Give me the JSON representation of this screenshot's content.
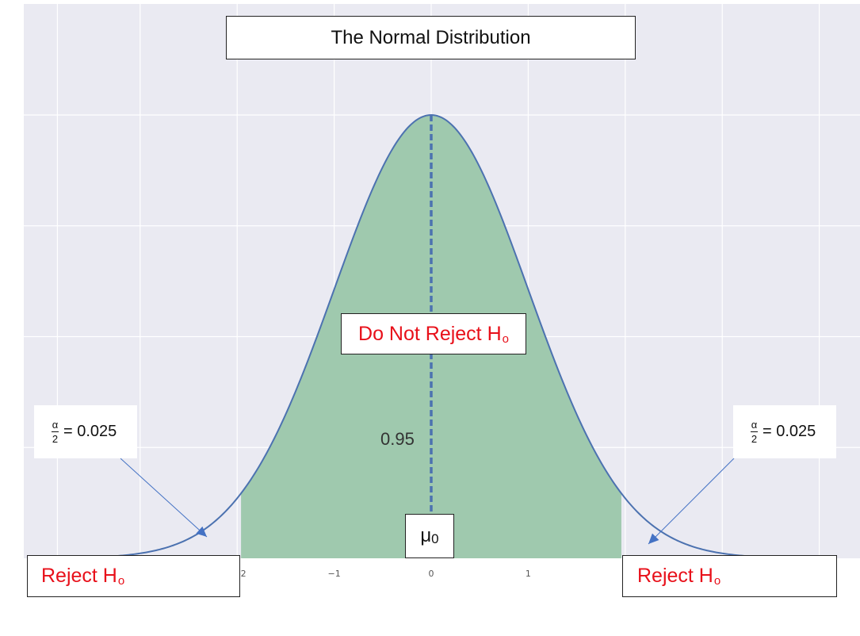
{
  "title": "The Normal Distribution",
  "labels": {
    "accept_region": "Do Not Reject H",
    "reject_region": "Reject H",
    "hypothesis_subscript": "o",
    "alpha_numerator": "α",
    "alpha_denominator": "2",
    "alpha_value": "= 0.025",
    "mean_symbol": "μ",
    "mean_subscript": "0",
    "center_area": "0.95"
  },
  "colors": {
    "plot_background": "#eaeaf2",
    "grid": "#ffffff",
    "curve": "#4c72b0",
    "acceptance_fill": "#9fc9ae",
    "reject_text": "#e8101a",
    "arrow": "#4472c4"
  },
  "chart_data": {
    "type": "area",
    "distribution": "standard normal",
    "x_range": [
      -4,
      4
    ],
    "xlim": [
      -4.0,
      4.0
    ],
    "ylim": [
      0,
      0.4
    ],
    "mean": 0,
    "std": 1,
    "critical_values": [
      -1.96,
      1.96
    ],
    "shaded_area": 0.95,
    "tail_area_each": 0.025,
    "xticks": [
      -2,
      -1,
      0,
      1
    ],
    "xtick_labels": [
      "-2",
      "−1",
      "0",
      "1"
    ],
    "mean_line": "dashed",
    "grid": true
  }
}
